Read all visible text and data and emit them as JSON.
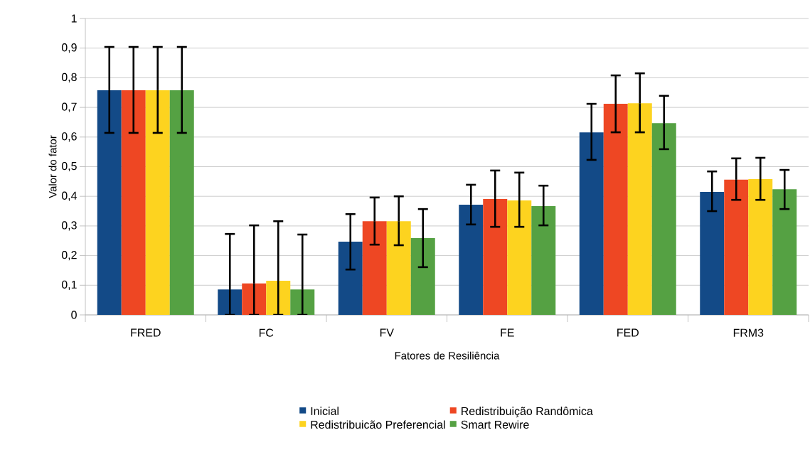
{
  "chart_data": {
    "type": "bar",
    "xlabel": "Fatores de Resiliência",
    "ylabel": "Valor do fator",
    "categories": [
      "FRED",
      "FC",
      "FV",
      "FE",
      "FED",
      "FRM3"
    ],
    "ylim": [
      0,
      1
    ],
    "yticks": [
      0,
      {
        "value": 0.1,
        "label": "0,1"
      },
      {
        "value": 0.2,
        "label": "0,2"
      },
      {
        "value": 0.3,
        "label": "0,3"
      },
      {
        "value": 0.4,
        "label": "0,4"
      },
      {
        "value": 0.5,
        "label": "0,5"
      },
      {
        "value": 0.6,
        "label": "0,6"
      },
      {
        "value": 0.7,
        "label": "0,7"
      },
      {
        "value": 0.8,
        "label": "0,8"
      },
      {
        "value": 0.9,
        "label": "0,9"
      },
      1
    ],
    "grid": "y",
    "legend": "bottom",
    "series": [
      {
        "name": "Inicial",
        "color": "#134a87",
        "values": [
          0.758,
          0.086,
          0.247,
          0.372,
          0.616,
          0.415
        ],
        "errors": [
          [
            0.614,
            0.904
          ],
          [
            0,
            0.273
          ],
          [
            0.153,
            0.34
          ],
          [
            0.305,
            0.439
          ],
          [
            0.523,
            0.712
          ],
          [
            0.35,
            0.484
          ]
        ]
      },
      {
        "name": "Redistribuição Randômica",
        "color": "#ee4723",
        "values": [
          0.758,
          0.106,
          0.316,
          0.391,
          0.712,
          0.456
        ],
        "errors": [
          [
            0.614,
            0.904
          ],
          [
            0,
            0.302
          ],
          [
            0.237,
            0.396
          ],
          [
            0.297,
            0.487
          ],
          [
            0.616,
            0.808
          ],
          [
            0.388,
            0.528
          ]
        ]
      },
      {
        "name": "Redistribuicão Preferencial",
        "color": "#fdd31f",
        "values": [
          0.758,
          0.115,
          0.316,
          0.386,
          0.714,
          0.458
        ],
        "errors": [
          [
            0.614,
            0.904
          ],
          [
            0,
            0.316
          ],
          [
            0.235,
            0.4
          ],
          [
            0.297,
            0.48
          ],
          [
            0.616,
            0.815
          ],
          [
            0.388,
            0.53
          ]
        ]
      },
      {
        "name": "Smart Rewire",
        "color": "#55a143",
        "values": [
          0.758,
          0.086,
          0.259,
          0.367,
          0.647,
          0.424
        ],
        "errors": [
          [
            0.614,
            0.904
          ],
          [
            0,
            0.271
          ],
          [
            0.161,
            0.357
          ],
          [
            0.302,
            0.436
          ],
          [
            0.559,
            0.739
          ],
          [
            0.357,
            0.489
          ]
        ]
      }
    ]
  }
}
